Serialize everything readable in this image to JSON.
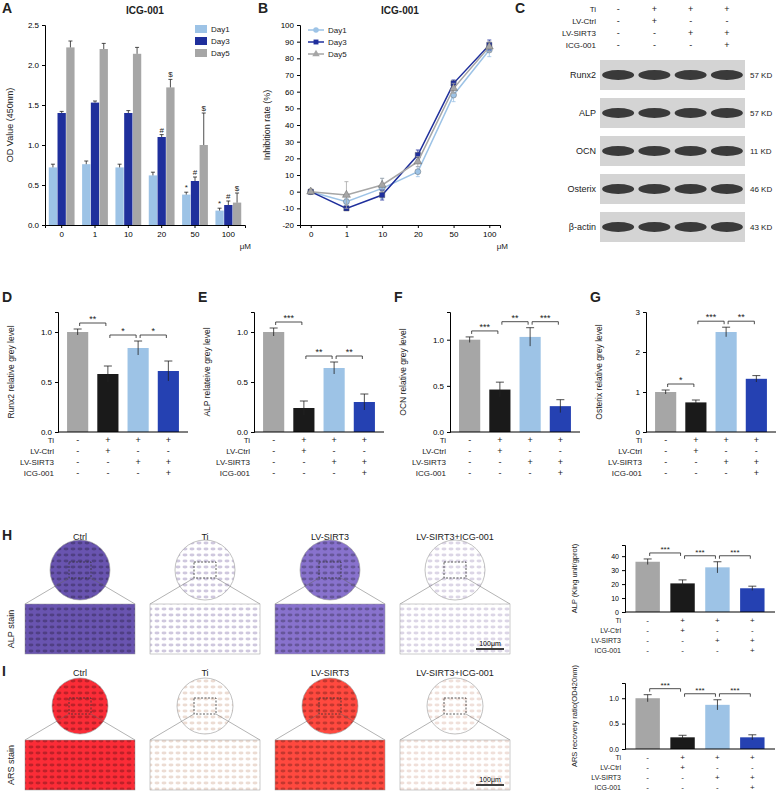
{
  "panel_labels": [
    "A",
    "B",
    "C",
    "D",
    "E",
    "F",
    "G",
    "H",
    "I"
  ],
  "conditions": [
    {
      "name": "Ti",
      "signs": [
        "-",
        "+",
        "+",
        "+"
      ]
    },
    {
      "name": "LV-Ctrl",
      "signs": [
        "-",
        "+",
        "-",
        "-"
      ]
    },
    {
      "name": "LV-SIRT3",
      "signs": [
        "-",
        "-",
        "+",
        "+"
      ]
    },
    {
      "name": "ICG-001",
      "signs": [
        "-",
        "-",
        "-",
        "+"
      ]
    }
  ],
  "blot": {
    "rows": [
      {
        "name": "Runx2",
        "size": "57 KD"
      },
      {
        "name": "ALP",
        "size": "57 KD"
      },
      {
        "name": "OCN",
        "size": "11 KD"
      },
      {
        "name": "Osterix",
        "size": "46 KD"
      },
      {
        "name": "β-actin",
        "size": "43 KD"
      }
    ]
  },
  "stains": [
    {
      "name": "ALP stain",
      "groups": [
        "Ctrl",
        "Ti",
        "LV-SIRT3",
        "LV-SIRT3+ICG-001"
      ],
      "scale": "100μm"
    },
    {
      "name": "ARS stain",
      "groups": [
        "Ctrl",
        "Ti",
        "LV-SIRT3",
        "LV-SIRT3+ICG-001"
      ],
      "scale": "100μm"
    }
  ],
  "chart_data": [
    {
      "type": "bar",
      "title": "ICG-001",
      "xlabel": "μM",
      "ylabel": "OD Value (450nm)",
      "categories": [
        "0",
        "1",
        "10",
        "20",
        "50",
        "100"
      ],
      "series": [
        {
          "name": "Day1",
          "color": "#9dc3e6",
          "values": [
            0.72,
            0.76,
            0.72,
            0.62,
            0.38,
            0.18
          ],
          "errors": [
            0.04,
            0.04,
            0.04,
            0.04,
            0.03,
            0.03
          ],
          "annotations": [
            null,
            null,
            null,
            null,
            "*",
            "*"
          ]
        },
        {
          "name": "Day3",
          "color": "#1f2f9c",
          "values": [
            1.4,
            1.53,
            1.4,
            1.1,
            0.55,
            0.25
          ],
          "errors": [
            0.02,
            0.02,
            0.03,
            0.03,
            0.05,
            0.05
          ],
          "annotations": [
            null,
            null,
            null,
            "#",
            "#",
            "#"
          ]
        },
        {
          "name": "Day5",
          "color": "#a6a6a6",
          "values": [
            2.22,
            2.2,
            2.14,
            1.72,
            1.0,
            0.28
          ],
          "errors": [
            0.08,
            0.07,
            0.08,
            0.1,
            0.4,
            0.12
          ],
          "annotations": [
            null,
            null,
            null,
            "$",
            "$",
            "$"
          ]
        }
      ],
      "ylim": [
        0,
        2.5
      ],
      "yticks": [
        {
          "value": 0,
          "label": "0.0"
        },
        0.5,
        {
          "value": 1,
          "label": "1.0"
        },
        1.5,
        {
          "value": 2,
          "label": "2.0"
        },
        2.5
      ],
      "legend": "top-right"
    },
    {
      "type": "line",
      "title": "ICG-001",
      "xlabel": "μM",
      "ylabel": "Inhibition rate (%)",
      "categories": [
        "0",
        "1",
        "10",
        "20",
        "50",
        "100"
      ],
      "series": [
        {
          "name": "Day1",
          "color": "#9dc3e6",
          "marker": "circle",
          "values": [
            0,
            -6,
            2,
            12,
            58,
            85
          ],
          "errors": [
            1,
            2,
            6,
            3,
            4,
            4
          ]
        },
        {
          "name": "Day3",
          "color": "#1f2f9c",
          "marker": "square",
          "values": [
            0,
            -10,
            -2,
            22,
            65,
            88
          ],
          "errors": [
            1,
            1,
            3,
            3,
            2,
            3
          ]
        },
        {
          "name": "Day5",
          "color": "#a6a6a6",
          "marker": "triangle",
          "values": [
            0,
            -2,
            4,
            18,
            62,
            87
          ],
          "errors": [
            1,
            8,
            4,
            3,
            3,
            3
          ]
        }
      ],
      "ylim": [
        -20,
        100
      ],
      "yticks": [
        -20,
        -10,
        0,
        10,
        20,
        30,
        40,
        50,
        60,
        70,
        80,
        90,
        100
      ],
      "legend": "top-left"
    },
    {
      "type": "bar",
      "ylabel": "Runx2 relative grey level",
      "values": [
        1.0,
        0.58,
        0.84,
        0.61
      ],
      "errors": [
        0.03,
        0.08,
        0.07,
        0.1
      ],
      "colors": [
        "#a6a6a6",
        "#1a1a1a",
        "#9dc3e6",
        "#2541b2"
      ],
      "ylim": [
        0,
        1.2
      ],
      "yticks": [
        {
          "value": 0,
          "label": "0.0"
        },
        0.5,
        {
          "value": 1,
          "label": "1.0"
        }
      ],
      "comparisons": [
        {
          "pair": [
            0,
            1
          ],
          "label": "**"
        },
        {
          "pair": [
            1,
            2
          ],
          "label": "*"
        },
        {
          "pair": [
            2,
            3
          ],
          "label": "*"
        }
      ]
    },
    {
      "type": "bar",
      "ylabel": "ALP relateive grey level",
      "values": [
        1.0,
        0.24,
        0.64,
        0.3
      ],
      "errors": [
        0.04,
        0.07,
        0.06,
        0.08
      ],
      "colors": [
        "#a6a6a6",
        "#1a1a1a",
        "#9dc3e6",
        "#2541b2"
      ],
      "ylim": [
        0,
        1.2
      ],
      "yticks": [
        {
          "value": 0,
          "label": "0.0"
        },
        0.5,
        {
          "value": 1,
          "label": "1.0"
        }
      ],
      "comparisons": [
        {
          "pair": [
            0,
            1
          ],
          "label": "***"
        },
        {
          "pair": [
            1,
            2
          ],
          "label": "**"
        },
        {
          "pair": [
            2,
            3
          ],
          "label": "**"
        }
      ]
    },
    {
      "type": "bar",
      "ylabel": "OCN relative grey level",
      "values": [
        1.0,
        0.46,
        1.03,
        0.28
      ],
      "errors": [
        0.03,
        0.08,
        0.1,
        0.07
      ],
      "colors": [
        "#a6a6a6",
        "#1a1a1a",
        "#9dc3e6",
        "#2541b2"
      ],
      "ylim": [
        0,
        1.3
      ],
      "yticks": [
        {
          "value": 0,
          "label": "0.0"
        },
        0.5,
        {
          "value": 1,
          "label": "1.0"
        }
      ],
      "comparisons": [
        {
          "pair": [
            0,
            1
          ],
          "label": "***"
        },
        {
          "pair": [
            1,
            2
          ],
          "label": "**"
        },
        {
          "pair": [
            2,
            3
          ],
          "label": "***"
        }
      ]
    },
    {
      "type": "bar",
      "ylabel": "Osterix relative grey level",
      "values": [
        1.0,
        0.74,
        2.5,
        1.33
      ],
      "errors": [
        0.05,
        0.06,
        0.12,
        0.08
      ],
      "colors": [
        "#a6a6a6",
        "#1a1a1a",
        "#9dc3e6",
        "#2541b2"
      ],
      "ylim": [
        0,
        3
      ],
      "yticks": [
        0,
        1,
        2,
        3
      ],
      "comparisons": [
        {
          "pair": [
            0,
            1
          ],
          "label": "*"
        },
        {
          "pair": [
            1,
            2
          ],
          "label": "***"
        },
        {
          "pair": [
            2,
            3
          ],
          "label": "**"
        }
      ]
    },
    {
      "type": "bar",
      "ylabel": "ALP (King unit/gprot)",
      "values": [
        36,
        20.5,
        32,
        17
      ],
      "errors": [
        2,
        2.5,
        4,
        1.5
      ],
      "colors": [
        "#a6a6a6",
        "#1a1a1a",
        "#9dc3e6",
        "#2541b2"
      ],
      "ylim": [
        0,
        48
      ],
      "yticks": [
        0,
        10,
        20,
        30,
        40
      ],
      "comparisons": [
        {
          "pair": [
            0,
            1
          ],
          "label": "***"
        },
        {
          "pair": [
            1,
            2
          ],
          "label": "***"
        },
        {
          "pair": [
            2,
            3
          ],
          "label": "***"
        }
      ]
    },
    {
      "type": "bar",
      "ylabel": "ARS recovery ratio(OD420nm)",
      "values": [
        1.0,
        0.23,
        0.87,
        0.23
      ],
      "errors": [
        0.07,
        0.04,
        0.1,
        0.05
      ],
      "colors": [
        "#a6a6a6",
        "#1a1a1a",
        "#9dc3e6",
        "#2541b2"
      ],
      "ylim": [
        0,
        1.3
      ],
      "yticks": [
        {
          "value": 0,
          "label": "0.0"
        },
        0.5,
        {
          "value": 1,
          "label": "1.0"
        }
      ],
      "comparisons": [
        {
          "pair": [
            0,
            1
          ],
          "label": "***"
        },
        {
          "pair": [
            1,
            2
          ],
          "label": "***"
        },
        {
          "pair": [
            2,
            3
          ],
          "label": "***"
        }
      ]
    }
  ]
}
